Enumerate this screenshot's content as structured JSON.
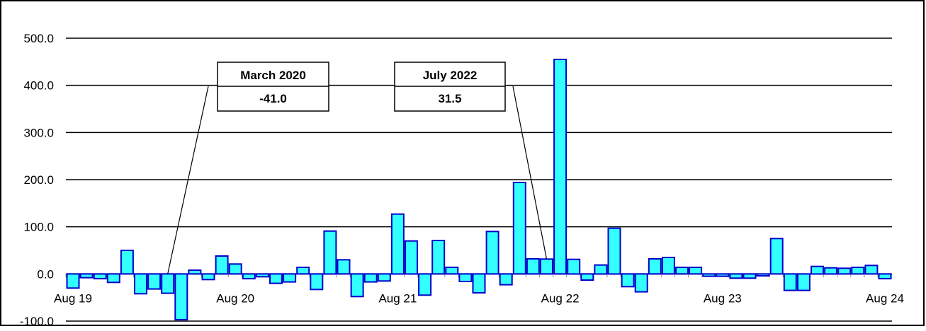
{
  "chart_data": {
    "type": "bar",
    "title": "",
    "xlabel": "",
    "ylabel": "",
    "ylim": [
      -100,
      500
    ],
    "y_ticks": [
      "500.0",
      "400.0",
      "300.0",
      "200.0",
      "100.0",
      "0.0",
      "-100.0"
    ],
    "x_tick_labels": [
      "Aug 19",
      "Aug 20",
      "Aug 21",
      "Aug 22",
      "Aug 23",
      "Aug 24"
    ],
    "grid": true,
    "colors": {
      "bar_fill": "#33ffff",
      "bar_stroke": "#0000cc",
      "grid": "#000000"
    },
    "start_month": "2019-08",
    "values": [
      -30,
      -8,
      -10,
      -18,
      50,
      -42,
      -32,
      -41,
      -97,
      8,
      -12,
      38,
      21,
      -10,
      -6,
      -20,
      -17,
      14,
      -33,
      91,
      30,
      -48,
      -17,
      -15,
      127,
      70,
      -45,
      71,
      14,
      -16,
      -40,
      90,
      -23,
      194,
      32,
      31.5,
      455,
      31,
      -13,
      19,
      97,
      -27,
      -38,
      32,
      35,
      14,
      14,
      -5,
      -5,
      -9,
      -9,
      -4,
      75,
      -35,
      -35,
      16,
      13,
      12,
      14,
      18,
      -10
    ]
  },
  "callouts": [
    {
      "title": "March 2020",
      "value": "-41.0"
    },
    {
      "title": "July 2022",
      "value": "31.5"
    }
  ]
}
